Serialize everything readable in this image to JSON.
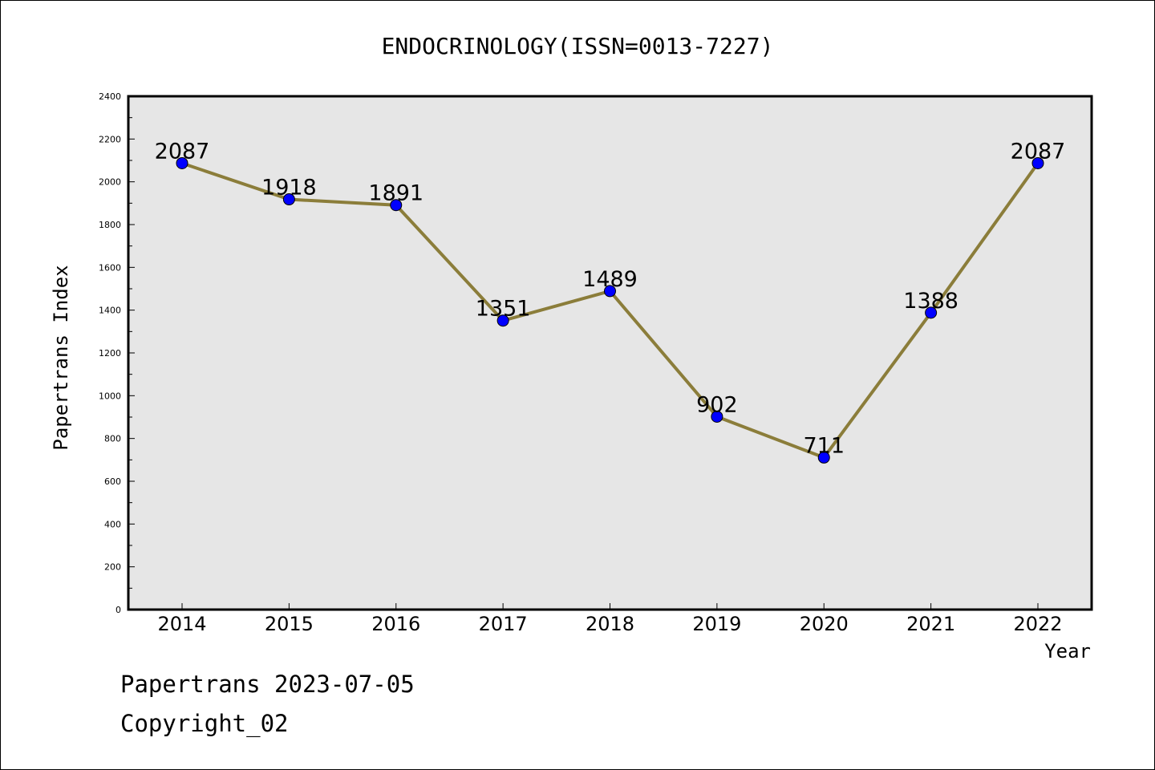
{
  "chart_data": {
    "type": "line",
    "title": "ENDOCRINOLOGY(ISSN=0013-7227)",
    "xlabel": "Year",
    "ylabel": "Papertrans Index",
    "categories": [
      "2014",
      "2015",
      "2016",
      "2017",
      "2018",
      "2019",
      "2020",
      "2021",
      "2022"
    ],
    "series": [
      {
        "values": [
          2087,
          1918,
          1891,
          1351,
          1489,
          902,
          711,
          1388,
          2087
        ]
      }
    ],
    "ylim": [
      0,
      2400
    ],
    "yticks": [
      "0",
      "200",
      "400",
      "600",
      "800",
      "1000",
      "1200",
      "1400",
      "1600",
      "1800",
      "2000",
      "2200",
      "2400"
    ],
    "data_labels": [
      "2087",
      "1918",
      "1891",
      "1351",
      "1489",
      "902",
      "711",
      "1388",
      "2087"
    ],
    "grid": false,
    "colors": {
      "line": "#8b7d3a",
      "marker": "#0000ff",
      "plot_background": "#e6e6e6"
    }
  },
  "footer": {
    "line1": "Papertrans 2023-07-05",
    "line2": "Copyright_02"
  }
}
